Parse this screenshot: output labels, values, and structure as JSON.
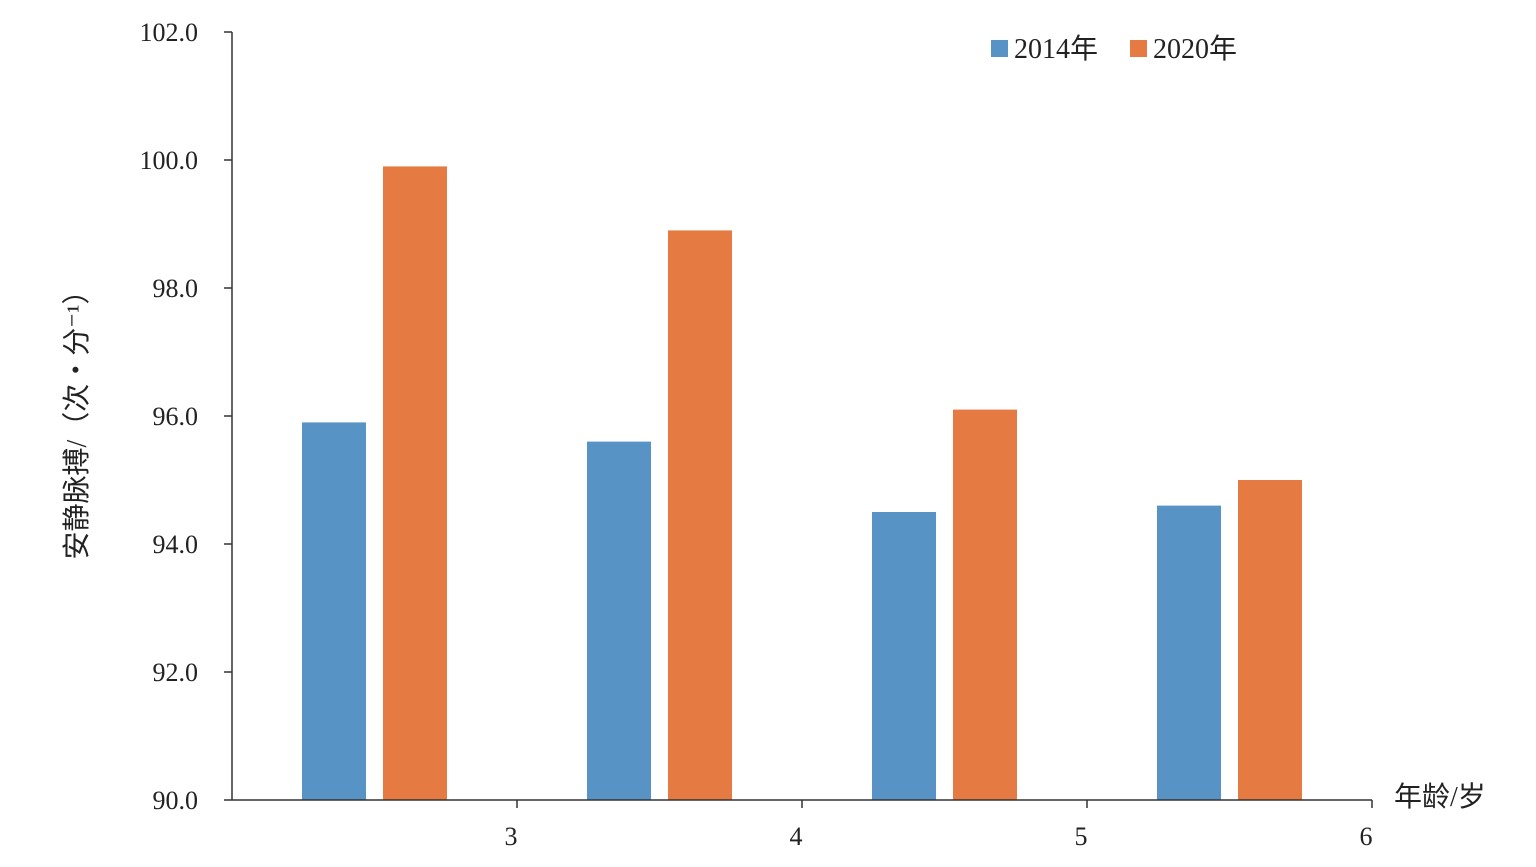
{
  "chart_data": {
    "type": "bar",
    "title": "",
    "xlabel": "年龄/岁",
    "ylabel": "安静脉搏/（次・分⁻¹）",
    "ylim": [
      90.0,
      102.0
    ],
    "yticks": [
      "90.0",
      "92.0",
      "94.0",
      "96.0",
      "98.0",
      "100.0",
      "102.0"
    ],
    "xticks": [
      "3",
      "4",
      "5",
      "6"
    ],
    "categories": [
      "3",
      "4",
      "5",
      "6"
    ],
    "series": [
      {
        "name": "2014年",
        "color": "#5793c5",
        "values": [
          95.9,
          95.6,
          94.5,
          94.6
        ]
      },
      {
        "name": "2020年",
        "color": "#e57b42",
        "values": [
          99.9,
          98.9,
          96.1,
          95.0
        ]
      }
    ],
    "grid": false,
    "legend_position": "top-right"
  }
}
